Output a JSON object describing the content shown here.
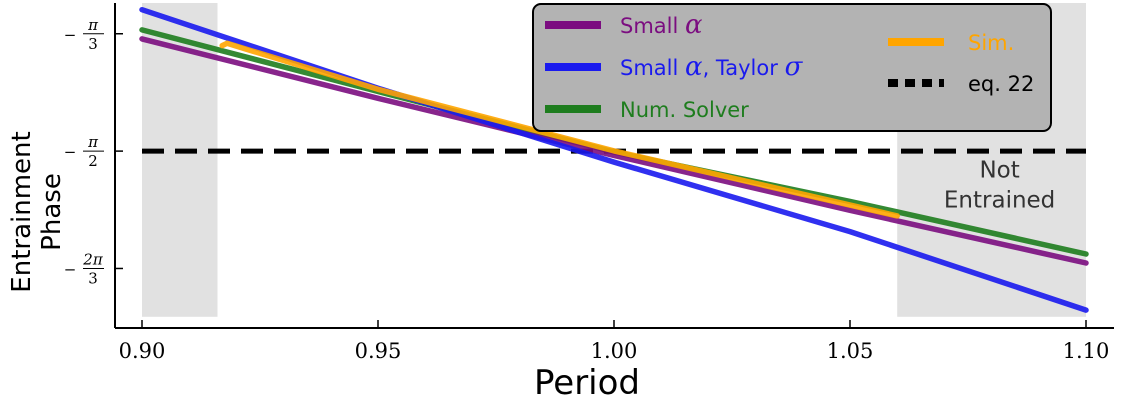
{
  "chart_data": {
    "type": "line",
    "xlabel": "Period",
    "ylabel_lines": [
      "Entrainment",
      "Phase"
    ],
    "xlim": [
      0.9,
      1.1
    ],
    "ylim": [
      -2.36,
      -0.91
    ],
    "x_ticks": [
      {
        "value": 0.9,
        "label": "0.90"
      },
      {
        "value": 0.95,
        "label": "0.95"
      },
      {
        "value": 1.0,
        "label": "1.00"
      },
      {
        "value": 1.05,
        "label": "1.05"
      },
      {
        "value": 1.1,
        "label": "1.10"
      }
    ],
    "y_ticks": [
      {
        "value": -1.0472,
        "sign": "−",
        "num": "π",
        "den": "3"
      },
      {
        "value": -1.5708,
        "sign": "−",
        "num": "π",
        "den": "2"
      },
      {
        "value": -2.0944,
        "sign": "−",
        "num": "2π",
        "den": "3"
      }
    ],
    "shaded_regions": [
      {
        "x0": 0.9,
        "x1": 0.916,
        "y0": -2.31,
        "y1": -0.91
      },
      {
        "x0": 1.06,
        "x1": 1.1,
        "y0": -2.31,
        "y1": -0.91
      }
    ],
    "annotation": {
      "lines": [
        "Not",
        "Entrained"
      ],
      "x": 1.08,
      "y": -1.68
    },
    "series": [
      {
        "name": "Small α",
        "legend_text": "Small ",
        "legend_greek": "α",
        "color": "#7b0d80",
        "style": "solid",
        "x": [
          0.9,
          0.95,
          1.0,
          1.05,
          1.1
        ],
        "y": [
          -1.07,
          -1.335,
          -1.59,
          -1.835,
          -2.07
        ]
      },
      {
        "name": "Small α, Taylor σ",
        "legend_text": "Small ",
        "legend_greek": "α",
        "legend_text2": ", Taylor ",
        "legend_greek2": "σ",
        "color": "#1a1aee",
        "style": "solid",
        "x": [
          0.9,
          0.95,
          1.0,
          1.05,
          1.1
        ],
        "y": [
          -0.94,
          -1.29,
          -1.62,
          -1.93,
          -2.28
        ]
      },
      {
        "name": "Num. Solver",
        "legend_text": "Num. Solver",
        "color": "#1e7d1e",
        "style": "solid",
        "x": [
          0.9,
          0.95,
          1.0,
          1.05,
          1.1
        ],
        "y": [
          -1.03,
          -1.305,
          -1.575,
          -1.795,
          -2.03
        ]
      },
      {
        "name": "Sim.",
        "legend_text": "Sim.",
        "color": "#ffa500",
        "style": "solid",
        "x": [
          0.917,
          0.918,
          0.95,
          1.0,
          1.06
        ],
        "y": [
          -1.1,
          -1.09,
          -1.295,
          -1.57,
          -1.86
        ]
      },
      {
        "name": "eq. 22",
        "legend_text": "eq. 22",
        "color": "#000000",
        "style": "dashed",
        "x": [
          0.9,
          1.1
        ],
        "y": [
          -1.5708,
          -1.5708
        ]
      }
    ],
    "legend_position": "top-center"
  }
}
